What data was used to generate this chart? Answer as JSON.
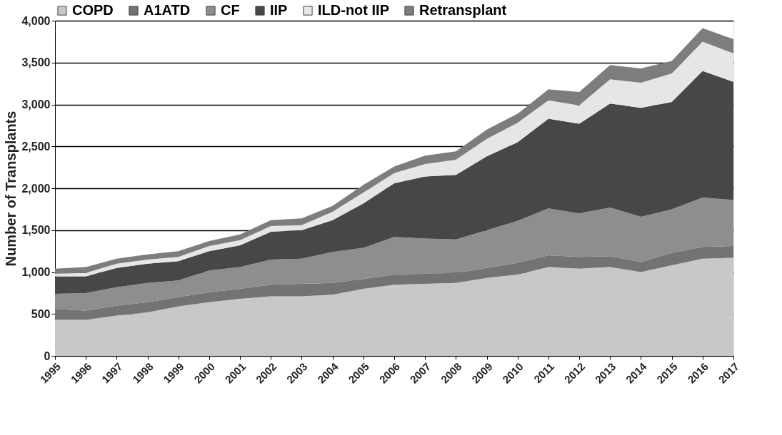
{
  "chart_data": {
    "type": "area",
    "stacked": true,
    "ylabel": "Number of Transplants",
    "categories": [
      "1995",
      "1996",
      "1997",
      "1998",
      "1999",
      "2000",
      "2001",
      "2002",
      "2003",
      "2004",
      "2005",
      "2006",
      "2007",
      "2008",
      "2009",
      "2010",
      "2011",
      "2012",
      "2013",
      "2014",
      "2015",
      "2016",
      "2017"
    ],
    "series": [
      {
        "name": "COPD",
        "color": "#c8c8c8",
        "values": [
          430,
          430,
          480,
          520,
          590,
          640,
          680,
          710,
          710,
          730,
          800,
          850,
          860,
          870,
          930,
          970,
          1060,
          1040,
          1060,
          1000,
          1080,
          1160,
          1170
        ]
      },
      {
        "name": "A1ATD",
        "color": "#737373",
        "values": [
          130,
          110,
          120,
          120,
          110,
          120,
          120,
          140,
          150,
          140,
          120,
          120,
          120,
          120,
          120,
          140,
          140,
          140,
          130,
          120,
          150,
          140,
          140
        ]
      },
      {
        "name": "CF",
        "color": "#8e8e8e",
        "values": [
          180,
          210,
          220,
          230,
          200,
          260,
          260,
          300,
          300,
          370,
          370,
          450,
          420,
          400,
          450,
          500,
          560,
          520,
          580,
          540,
          520,
          590,
          550
        ]
      },
      {
        "name": "IIP",
        "color": "#474747",
        "values": [
          210,
          200,
          230,
          230,
          230,
          230,
          260,
          330,
          340,
          380,
          530,
          640,
          740,
          770,
          880,
          940,
          1070,
          1070,
          1240,
          1300,
          1280,
          1510,
          1410
        ]
      },
      {
        "name": "ILD-not IIP",
        "color": "#e6e6e6",
        "values": [
          30,
          40,
          50,
          50,
          50,
          60,
          60,
          70,
          60,
          100,
          130,
          120,
          150,
          180,
          210,
          230,
          220,
          220,
          290,
          300,
          340,
          350,
          340
        ]
      },
      {
        "name": "Retransplant",
        "color": "#7d7d7d",
        "values": [
          60,
          70,
          60,
          60,
          70,
          60,
          70,
          70,
          80,
          70,
          90,
          80,
          100,
          100,
          110,
          110,
          130,
          160,
          170,
          170,
          150,
          160,
          170
        ]
      }
    ],
    "ylim": [
      0,
      4000
    ],
    "yticks": [
      0,
      500,
      {
        "value": 1000,
        "label": "1,000"
      },
      {
        "value": 1500,
        "label": "1,500"
      },
      {
        "value": 2000,
        "label": "2,000"
      },
      {
        "value": 2500,
        "label": "2,500"
      },
      {
        "value": 3000,
        "label": "3,000"
      },
      {
        "value": 3500,
        "label": "3,500"
      },
      {
        "value": 4000,
        "label": "4,000"
      }
    ],
    "grid": "y",
    "legend": "top"
  }
}
